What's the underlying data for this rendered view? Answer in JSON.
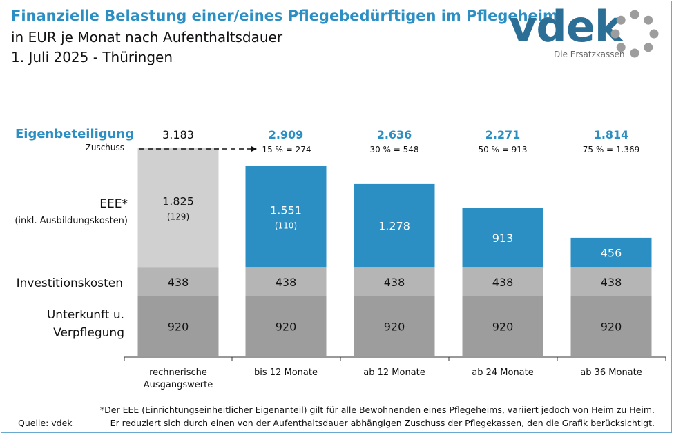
{
  "header": {
    "title": "Finanzielle Belastung einer/eines Pflegebedürftigen im Pflegeheim",
    "subtitle": "in EUR je Monat nach Aufenthaltsdauer",
    "date_region": "1. Juli 2025 - Thüringen"
  },
  "logo": {
    "word": "vdek",
    "tagline": "Die Ersatzkassen"
  },
  "row_labels": {
    "eigenbeteiligung": "Eigenbeteiligung",
    "zuschuss": "Zuschuss",
    "eee": "EEE*",
    "eee_note": "(inkl. Ausbildungskosten)",
    "investitionskosten": "Investitionskosten",
    "unterkunft_line1": "Unterkunft u.",
    "unterkunft_line2": "Verpflegung"
  },
  "footnote": {
    "line1": "*Der EEE (Einrichtungseinheitlicher Eigenanteil) gilt für alle Bewohnenden eines Pflegeheims, variiert jedoch von Heim zu Heim.",
    "line2": "Er reduziert sich durch einen von der Aufenthaltsdauer abhängigen Zuschuss der Pflegekassen, den die Grafik berücksichtigt."
  },
  "source": "Quelle: vdek",
  "colors": {
    "accent": "#2b8fc3",
    "eee_reference": "#d0d0d0",
    "investition": "#b5b5b5",
    "unterkunft": "#9d9d9d",
    "logo": "#2b6f96"
  },
  "chart_data": {
    "type": "bar",
    "stacked": true,
    "categories": [
      [
        "rechnerische",
        "Ausgangswerte"
      ],
      [
        "bis 12 Monate"
      ],
      [
        "ab 12 Monate"
      ],
      [
        "ab 24 Monate"
      ],
      [
        "ab 36 Monate"
      ]
    ],
    "series": [
      {
        "name": "Unterkunft u. Verpflegung",
        "values": [
          920,
          920,
          920,
          920,
          920
        ],
        "labels": [
          "920",
          "920",
          "920",
          "920",
          "920"
        ]
      },
      {
        "name": "Investitionskosten",
        "values": [
          438,
          438,
          438,
          438,
          438
        ],
        "labels": [
          "438",
          "438",
          "438",
          "438",
          "438"
        ]
      },
      {
        "name": "EEE* (inkl. Ausbildungskosten)",
        "values": [
          1825,
          1551,
          1278,
          913,
          456
        ],
        "labels": [
          "1.825",
          "1.551",
          "1.278",
          "913",
          "456"
        ]
      }
    ],
    "ausbildungskosten_labels": [
      "(129)",
      "(110)",
      "",
      "",
      ""
    ],
    "eigenbeteiligung": [
      3183,
      2909,
      2636,
      2271,
      1814
    ],
    "eigenbeteiligung_labels": [
      "3.183",
      "2.909",
      "2.636",
      "2.271",
      "1.814"
    ],
    "zuschuss_labels": [
      "",
      "15 % = 274",
      "30 % = 548",
      "50 % = 913",
      "75 % = 1.369"
    ],
    "ylim": [
      0,
      3183
    ]
  }
}
